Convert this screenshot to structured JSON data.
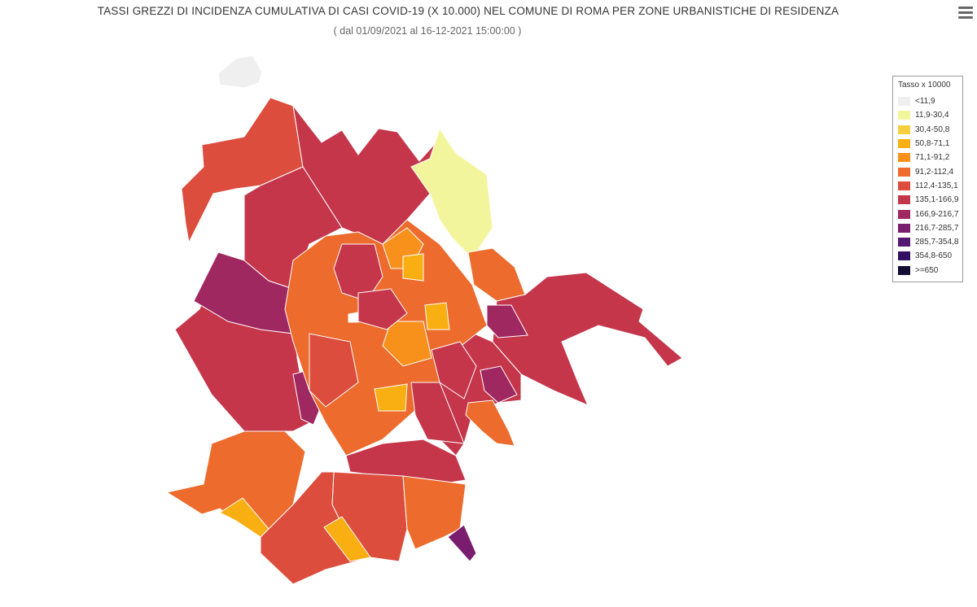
{
  "title": "TASSI GREZZI DI INCIDENZA CUMULATIVA DI CASI COVID-19 (X 10.000) NEL COMUNE DI ROMA PER ZONE URBANISTICHE DI RESIDENZA",
  "subtitle": "( dal 01/09/2021 al 16-12-2021 15:00:00 )",
  "menu_icon": "hamburger-menu-icon",
  "legend": {
    "title": "Tasso x 10000",
    "classes": [
      {
        "label": "<11,9",
        "color": "#efefef"
      },
      {
        "label": "11,9-30,4",
        "color": "#f3f59c"
      },
      {
        "label": "30,4-50,8",
        "color": "#f5cf3e"
      },
      {
        "label": "50,8-71,1",
        "color": "#f9ae12"
      },
      {
        "label": "71,1-91,2",
        "color": "#f8901c"
      },
      {
        "label": "91,2-112,4",
        "color": "#ed6b2c"
      },
      {
        "label": "112,4-135,1",
        "color": "#dd4d3d"
      },
      {
        "label": "135,1-166,9",
        "color": "#c5364b"
      },
      {
        "label": "166,9-216,7",
        "color": "#a02860"
      },
      {
        "label": "216,7-285,7",
        "color": "#7b1d6e"
      },
      {
        "label": "285,7-354,8",
        "color": "#561773"
      },
      {
        "label": "354,8-650",
        "color": "#320f61"
      },
      {
        "label": ">=650",
        "color": "#130c33"
      }
    ]
  },
  "zones": [
    {
      "name": "enclave-northwest",
      "class": 0
    },
    {
      "name": "northwest-large",
      "class": 6
    },
    {
      "name": "north",
      "class": 7
    },
    {
      "name": "northeast",
      "class": 1
    },
    {
      "name": "east-north",
      "class": 5
    },
    {
      "name": "east",
      "class": 7
    },
    {
      "name": "east-purple",
      "class": 8
    },
    {
      "name": "southeast",
      "class": 7
    },
    {
      "name": "southeast-orange",
      "class": 5
    },
    {
      "name": "south",
      "class": 6
    },
    {
      "name": "south-purple-tip",
      "class": 9
    },
    {
      "name": "southwest",
      "class": 6
    },
    {
      "name": "west",
      "class": 7
    },
    {
      "name": "west-purple",
      "class": 8
    },
    {
      "name": "coast-southwest",
      "class": 5
    },
    {
      "name": "center",
      "class": 5
    }
  ]
}
